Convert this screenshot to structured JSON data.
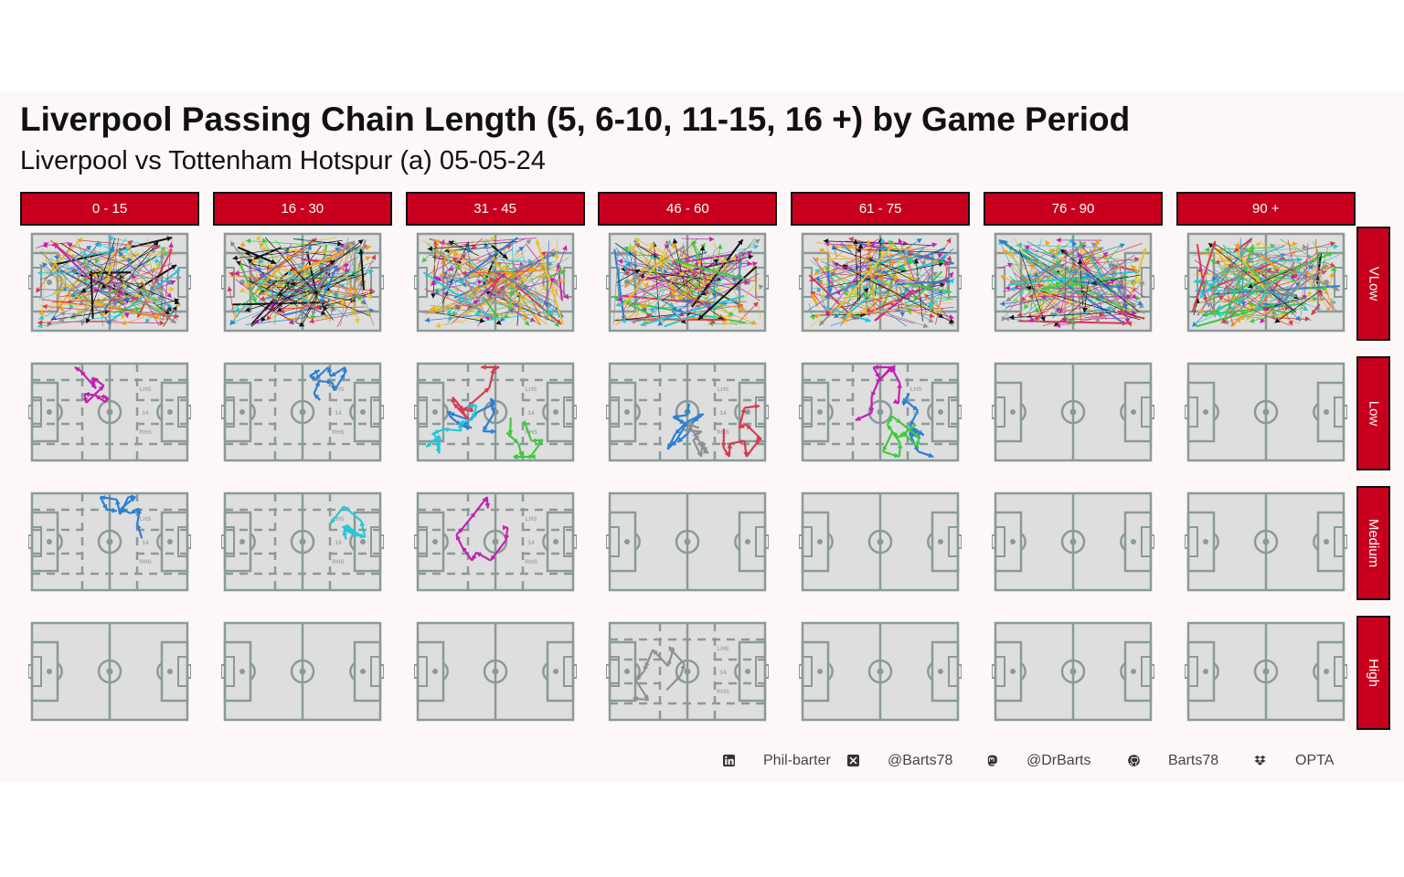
{
  "title": "Liverpool Passing Chain Length (5, 6-10, 11-15, 16 +) by Game Period",
  "subtitle": "Liverpool vs Tottenham Hotspur (a) 05-05-24",
  "pitch_marks": {
    "lhs": "LHS",
    "center": "14",
    "rhs": "RHS"
  },
  "footer": {
    "linkedin": "Phil-barter",
    "x": "@Barts78",
    "mastodon": "@DrBarts",
    "github": "Barts78",
    "source": "OPTA"
  },
  "icons": [
    "linkedin-icon",
    "x-icon",
    "mastodon-icon",
    "github-icon",
    "dropbox-icon"
  ],
  "colors": {
    "strip": "#c8001e",
    "pitch_fill": "#dedede",
    "pitch_line": "#8a9a98",
    "panel_bg": "#fdf7f7"
  },
  "chart_data": {
    "type": "facet-grid",
    "columns": [
      "0 - 15",
      "16 - 30",
      "31 - 45",
      "46 - 60",
      "61 - 75",
      "76 - 90",
      "90 +"
    ],
    "rows": [
      "VLow",
      "Low",
      "Medium",
      "High"
    ],
    "cells": [
      [
        {
          "chains": "many",
          "density": "high"
        },
        {
          "chains": "many",
          "density": "high"
        },
        {
          "chains": "many",
          "density": "high"
        },
        {
          "chains": "many",
          "density": "high"
        },
        {
          "chains": "many",
          "density": "high"
        },
        {
          "chains": "many",
          "density": "high"
        },
        {
          "chains": "many",
          "density": "high"
        }
      ],
      [
        {
          "chains": [
            "#c41fb0"
          ]
        },
        {
          "chains": [
            "#2a7fd4"
          ]
        },
        {
          "chains": [
            "#d73a4f",
            "#2a7fd4",
            "#3fc93f",
            "#22c8d8"
          ]
        },
        {
          "chains": [
            "#d73a4f",
            "#2a7fd4",
            "#909090"
          ]
        },
        {
          "chains": [
            "#2a7fd4",
            "#c41fb0",
            "#3fc93f"
          ]
        },
        {
          "chains": []
        },
        {
          "chains": []
        }
      ],
      [
        {
          "chains": [
            "#2a7fd4"
          ]
        },
        {
          "chains": [
            "#22c8d8"
          ]
        },
        {
          "chains": [
            "#c41fb0"
          ]
        },
        {
          "chains": []
        },
        {
          "chains": []
        },
        {
          "chains": []
        },
        {
          "chains": []
        }
      ],
      [
        {
          "chains": []
        },
        {
          "chains": []
        },
        {
          "chains": []
        },
        {
          "chains": [
            "#909090"
          ]
        },
        {
          "chains": []
        },
        {
          "chains": []
        },
        {
          "chains": []
        }
      ]
    ]
  }
}
